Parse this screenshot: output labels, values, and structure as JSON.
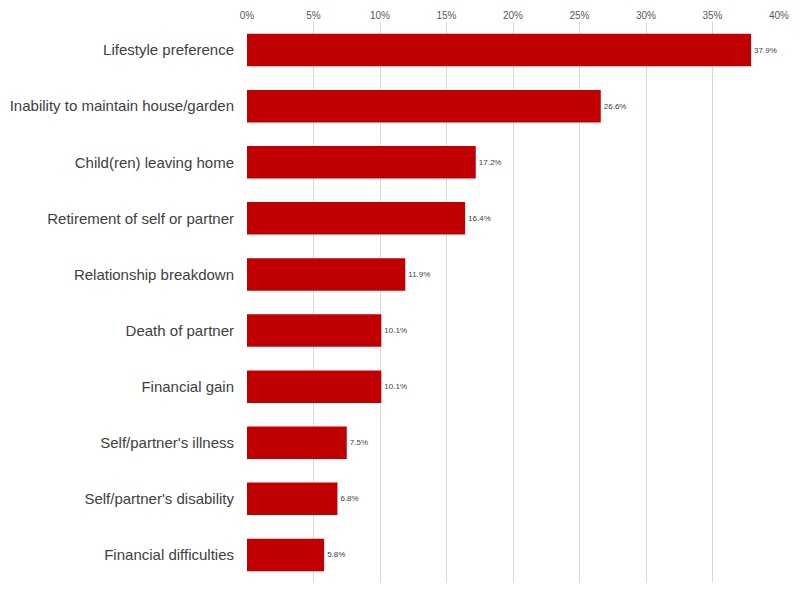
{
  "chart_data": {
    "type": "bar",
    "orientation": "horizontal",
    "categories": [
      "Lifestyle preference",
      "Inability to maintain house/garden",
      "Child(ren) leaving home",
      "Retirement of self or partner",
      "Relationship breakdown",
      "Death of partner",
      "Financial gain",
      "Self/partner's illness",
      "Self/partner's disability",
      "Financial difficulties"
    ],
    "values": [
      37.9,
      26.6,
      17.2,
      16.4,
      11.9,
      10.1,
      10.1,
      7.5,
      6.8,
      5.8
    ],
    "value_labels": [
      "37.9%",
      "26.6%",
      "17.2%",
      "16.4%",
      "11.9%",
      "10.1%",
      "10.1%",
      "7.5%",
      "6.8%",
      "5.8%"
    ],
    "color": "#c00000",
    "xlim": [
      0,
      40
    ],
    "xticks": [
      {
        "value": 0,
        "label": "0%"
      },
      {
        "value": 5,
        "label": "5%"
      },
      {
        "value": 10,
        "label": "10%"
      },
      {
        "value": 15,
        "label": "15%"
      },
      {
        "value": 20,
        "label": "20%"
      },
      {
        "value": 25,
        "label": "25%"
      },
      {
        "value": 30,
        "label": "30%"
      },
      {
        "value": 35,
        "label": "35%"
      },
      {
        "value": 40,
        "label": "40%"
      }
    ],
    "grid": true,
    "data_labels": true
  }
}
